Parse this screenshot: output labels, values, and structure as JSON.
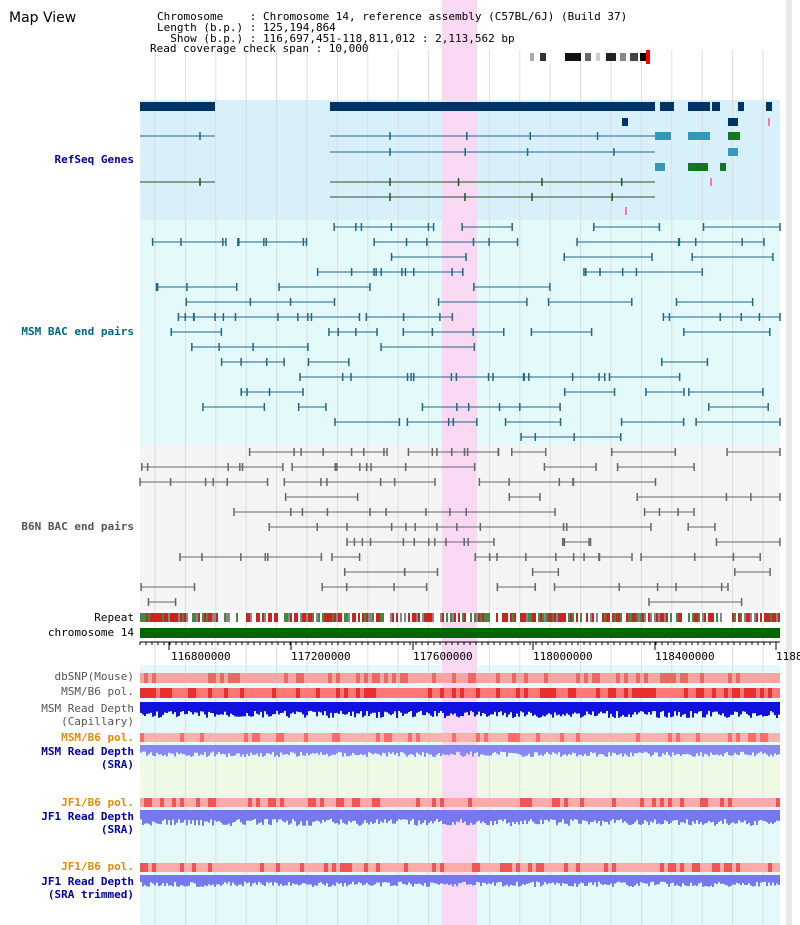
{
  "title": "Map View",
  "info": {
    "line1": "Chromosome    : Chromosome 14, reference assembly (C57BL/6J) (Build 37)",
    "line2": "Length (b.p.) : 125,194,864",
    "line3": "  Show (b.p.) : 116,697,451-118,811,012 : 2,113,562 bp",
    "line4": "Read coverage check span : 10,000"
  },
  "tracks": {
    "refseq": "RefSeq Genes",
    "msm_bac": "MSM BAC end pairs",
    "b6n_bac": "B6N BAC end pairs",
    "repeat": "Repeat",
    "chromosome": "chromosome 14",
    "dbsnp": "dbSNP(Mouse)",
    "msm_b6_pol": "MSM/B6 pol.",
    "msm_depth_cap_1": "MSM Read Depth",
    "msm_depth_cap_2": "(Capillary)",
    "msm_b6_pol_2": "MSM/B6 pol.",
    "msm_depth_sra_1": "MSM Read Depth",
    "msm_depth_sra_2": "(SRA)",
    "jf1_b6_pol": "JF1/B6 pol.",
    "jf1_depth_sra_1": "JF1 Read Depth",
    "jf1_depth_sra_2": "(SRA)",
    "jf1_b6_pol_2": "JF1/B6 pol.",
    "jf1_depth_trim_1": "JF1 Read Depth",
    "jf1_depth_trim_2": "(SRA trimmed)"
  },
  "axis": {
    "ticks": [
      "116800000",
      "117200000",
      "117600000",
      "118000000",
      "118400000",
      "1188"
    ]
  },
  "colors": {
    "refseq_label": "#0000aa",
    "msm_label": "#006688",
    "b6n_label": "#555555",
    "pol_label": "#e88a00",
    "depth_label": "#0000aa",
    "highlight": "#f9d8f3",
    "chrom_bar": "#006600"
  }
}
